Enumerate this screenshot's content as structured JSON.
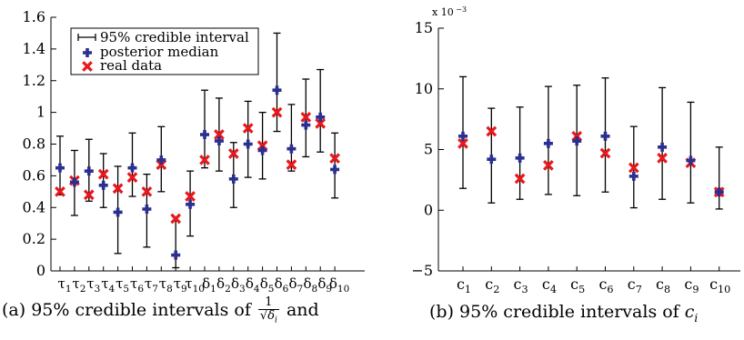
{
  "colors": {
    "median": "#2b2f8f",
    "real": "#e8181c",
    "interval": "#000000"
  },
  "legend": {
    "interval_label": "95% credible interval",
    "median_label": "posterior median",
    "real_label": "real data"
  },
  "captions": {
    "a_prefix": "(a) 95% credible intervals of",
    "a_num": "1",
    "a_den": "√δ",
    "a_den_sub": "i",
    "a_suffix": "and",
    "b_prefix": "(b) 95% credible intervals of",
    "b_var": "c",
    "b_sub": "i"
  },
  "chart_data": [
    {
      "type": "errorbar",
      "y_ticks": [
        "0",
        "0.2",
        "0.4",
        "0.6",
        "0.8",
        "1",
        "1.2",
        "1.4",
        "1.6"
      ],
      "ylim": [
        0,
        1.6
      ],
      "grid": false,
      "legend_position": "top-left",
      "categories": [
        {
          "base": "τ",
          "sub": "1"
        },
        {
          "base": "τ",
          "sub": "2"
        },
        {
          "base": "τ",
          "sub": "3"
        },
        {
          "base": "τ",
          "sub": "4"
        },
        {
          "base": "τ",
          "sub": "5"
        },
        {
          "base": "τ",
          "sub": "6"
        },
        {
          "base": "τ",
          "sub": "7"
        },
        {
          "base": "τ",
          "sub": "8"
        },
        {
          "base": "τ",
          "sub": "9"
        },
        {
          "base": "τ",
          "sub": "10"
        },
        {
          "base": "δ",
          "sub": "1"
        },
        {
          "base": "δ",
          "sub": "2"
        },
        {
          "base": "δ",
          "sub": "3"
        },
        {
          "base": "δ",
          "sub": "4"
        },
        {
          "base": "δ",
          "sub": "5"
        },
        {
          "base": "δ",
          "sub": "6"
        },
        {
          "base": "δ",
          "sub": "7"
        },
        {
          "base": "δ",
          "sub": "8"
        },
        {
          "base": "δ",
          "sub": "9"
        },
        {
          "base": "δ",
          "sub": "10"
        }
      ],
      "lower": [
        0.48,
        0.35,
        0.44,
        0.4,
        0.11,
        0.47,
        0.15,
        0.5,
        0.02,
        0.22,
        0.65,
        0.63,
        0.4,
        0.59,
        0.58,
        0.88,
        0.63,
        0.72,
        0.75,
        0.46
      ],
      "upper": [
        0.85,
        0.76,
        0.83,
        0.74,
        0.66,
        0.87,
        0.61,
        0.91,
        0.34,
        0.63,
        1.14,
        1.09,
        0.81,
        1.07,
        1.0,
        1.5,
        1.05,
        1.21,
        1.27,
        0.87
      ],
      "median": [
        0.65,
        0.56,
        0.63,
        0.54,
        0.37,
        0.65,
        0.39,
        0.7,
        0.1,
        0.42,
        0.86,
        0.82,
        0.58,
        0.8,
        0.76,
        1.14,
        0.77,
        0.92,
        0.97,
        0.64
      ],
      "real": [
        0.5,
        0.57,
        0.48,
        0.61,
        0.52,
        0.59,
        0.5,
        0.67,
        0.33,
        0.47,
        0.7,
        0.86,
        0.74,
        0.9,
        0.79,
        1.0,
        0.67,
        0.97,
        0.93,
        0.71
      ]
    },
    {
      "type": "errorbar",
      "y_ticks": [
        "−5",
        "0",
        "5",
        "10",
        "15"
      ],
      "ylim": [
        -5,
        15
      ],
      "y_scale_note": "x 10",
      "y_scale_exp": "−3",
      "grid": false,
      "categories": [
        {
          "base": "c",
          "sub": "1"
        },
        {
          "base": "c",
          "sub": "2"
        },
        {
          "base": "c",
          "sub": "3"
        },
        {
          "base": "c",
          "sub": "4"
        },
        {
          "base": "c",
          "sub": "5"
        },
        {
          "base": "c",
          "sub": "6"
        },
        {
          "base": "c",
          "sub": "7"
        },
        {
          "base": "c",
          "sub": "8"
        },
        {
          "base": "c",
          "sub": "9"
        },
        {
          "base": "c",
          "sub": "10"
        }
      ],
      "lower": [
        1.8,
        0.6,
        0.9,
        1.3,
        1.2,
        1.5,
        0.2,
        0.9,
        0.6,
        0.1
      ],
      "upper": [
        11.0,
        8.4,
        8.5,
        10.2,
        10.3,
        10.9,
        6.9,
        10.1,
        8.9,
        5.2
      ],
      "median": [
        6.1,
        4.2,
        4.3,
        5.5,
        5.7,
        6.1,
        2.8,
        5.2,
        4.1,
        1.5
      ],
      "real": [
        5.5,
        6.5,
        2.6,
        3.7,
        6.1,
        4.7,
        3.5,
        4.3,
        3.9,
        1.5
      ]
    }
  ]
}
